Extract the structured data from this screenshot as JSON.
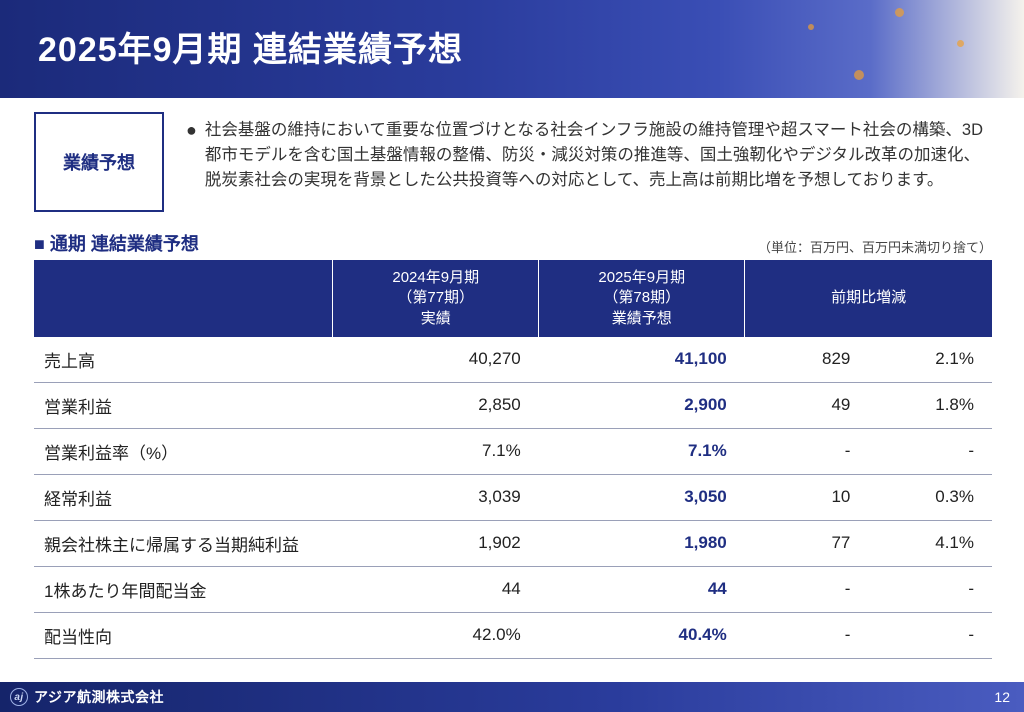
{
  "header": {
    "title": "2025年9月期  連結業績予想"
  },
  "intro": {
    "box_label": "業績予想",
    "bullet": "社会基盤の維持において重要な位置づけとなる社会インフラ施設の維持管理や超スマート社会の構築、3D都市モデルを含む国土基盤情報の整備、防災・減災対策の推進等、国土強靭化やデジタル改革の加速化、脱炭素社会の実現を背景とした公共投資等への対応として、売上高は前期比増を予想しております。"
  },
  "section": {
    "title": "通期 連結業績予想",
    "unit_note": "（単位：百万円、百万円未満切り捨て）"
  },
  "table": {
    "columns": {
      "blank": "",
      "col_a": "2024年9月期\n（第77期）\n実績",
      "col_b": "2025年9月期\n（第78期）\n業績予想",
      "col_diff": "前期比増減"
    },
    "rows": [
      {
        "label": "売上高",
        "a": "40,270",
        "b": "41,100",
        "diff": "829",
        "pct": "2.1%"
      },
      {
        "label": "営業利益",
        "a": "2,850",
        "b": "2,900",
        "diff": "49",
        "pct": "1.8%"
      },
      {
        "label": "営業利益率（%）",
        "a": "7.1%",
        "b": "7.1%",
        "diff": "-",
        "pct": "-"
      },
      {
        "label": "経常利益",
        "a": "3,039",
        "b": "3,050",
        "diff": "10",
        "pct": "0.3%"
      },
      {
        "label": "親会社株主に帰属する当期純利益",
        "a": "1,902",
        "b": "1,980",
        "diff": "77",
        "pct": "4.1%"
      },
      {
        "label": "1株あたり年間配当金",
        "a": "44",
        "b": "44",
        "diff": "-",
        "pct": "-"
      },
      {
        "label": "配当性向",
        "a": "42.0%",
        "b": "40.4%",
        "diff": "-",
        "pct": "-"
      }
    ]
  },
  "footer": {
    "company": "アジア航測株式会社",
    "page_no": "12",
    "logo_text": "aj"
  },
  "colors": {
    "brand_navy": "#1f2e82",
    "header_grad_start": "#1b2a7a",
    "header_grad_end": "#f5f2ec",
    "row_border": "#9aa0b8",
    "accent_orange": "#f0a030"
  }
}
